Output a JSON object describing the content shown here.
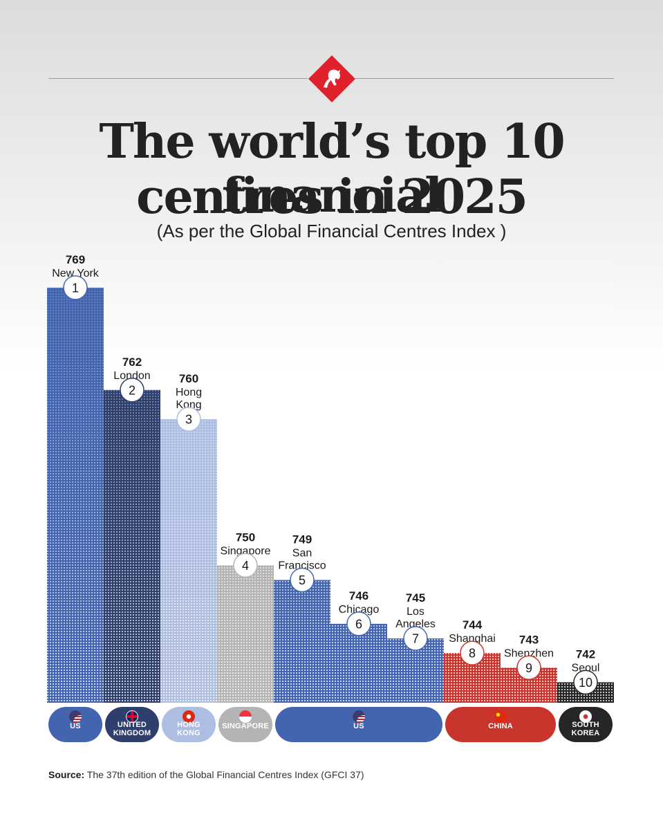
{
  "header": {
    "title_line1": "The world’s top 10 financial",
    "title_line2": "centres in 2025",
    "subtitle": "(As per the Global Financial Centres Index )"
  },
  "source": {
    "label": "Source:",
    "text": "The 37th edition of the Global Financial Centres Index (GFCI 37)"
  },
  "colors": {
    "us": "#4365B0",
    "uk": "#2E3F6E",
    "hong_kong": "#AEBDE2",
    "singapore": "#B4B4B4",
    "china": "#C9352C",
    "south_korea": "#262626",
    "brand_red": "#E0202A"
  },
  "countries": [
    {
      "label_lines": [
        "US"
      ],
      "color": "#4365B0",
      "flag": "us",
      "first_rank": 1,
      "last_rank": 1
    },
    {
      "label_lines": [
        "UNITED",
        "KINGDOM"
      ],
      "color": "#2E3F6E",
      "flag": "uk",
      "first_rank": 2,
      "last_rank": 2
    },
    {
      "label_lines": [
        "HONG",
        "KONG"
      ],
      "color": "#AEBDE2",
      "flag": "hong_kong",
      "first_rank": 3,
      "last_rank": 3
    },
    {
      "label_lines": [
        "SINGAPORE"
      ],
      "color": "#B4B4B4",
      "flag": "singapore",
      "first_rank": 4,
      "last_rank": 4
    },
    {
      "label_lines": [
        "US"
      ],
      "color": "#4365B0",
      "flag": "us",
      "first_rank": 5,
      "last_rank": 7
    },
    {
      "label_lines": [
        "CHINA"
      ],
      "color": "#C9352C",
      "flag": "china",
      "first_rank": 8,
      "last_rank": 9
    },
    {
      "label_lines": [
        "SOUTH",
        "KOREA"
      ],
      "color": "#262626",
      "flag": "south_korea",
      "first_rank": 10,
      "last_rank": 10
    }
  ],
  "chart_data": {
    "type": "bar",
    "title": "The world’s top 10 financial centres in 2025",
    "subtitle": "(As per the Global Financial Centres Index )",
    "xlabel": "",
    "ylabel": "",
    "ylim": [
      740.6,
      769
    ],
    "categories": [
      "New York",
      "London",
      "Hong Kong",
      "Singapore",
      "San Francisco",
      "Chicago",
      "Los Angeles",
      "Shanghai",
      "Shenzhen",
      "Seoul"
    ],
    "label_lines": [
      [
        "New York"
      ],
      [
        "London"
      ],
      [
        "Hong",
        "Kong"
      ],
      [
        "Singapore"
      ],
      [
        "San",
        "Francisco"
      ],
      [
        "Chicago"
      ],
      [
        "Los",
        "Angeles"
      ],
      [
        "Shanghai"
      ],
      [
        "Shenzhen"
      ],
      [
        "Seoul"
      ]
    ],
    "ranks": [
      "1",
      "2",
      "3",
      "4",
      "5",
      "6",
      "7",
      "8",
      "9",
      "10"
    ],
    "values": [
      769,
      762,
      760,
      750,
      749,
      746,
      745,
      744,
      743,
      742
    ],
    "bar_colors": [
      "#4365B0",
      "#2E3F6E",
      "#AEBDE2",
      "#B4B4B4",
      "#4365B0",
      "#4365B0",
      "#4365B0",
      "#C9352C",
      "#C9352C",
      "#262626"
    ],
    "grid": false,
    "legend": "none"
  }
}
